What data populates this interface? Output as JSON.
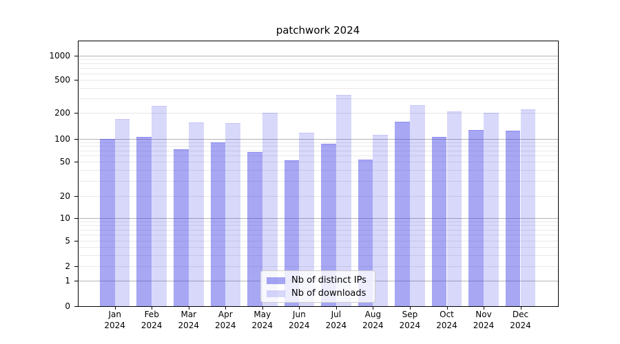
{
  "title": "patchwork 2024",
  "chart_data": {
    "type": "bar",
    "title": "patchwork 2024",
    "xlabel": "",
    "ylabel": "",
    "y_scale": "symlog-like (linear 0-1, log above)",
    "ylim": [
      0,
      1500
    ],
    "grid": "both major and minor, horizontal only",
    "legend_position": "bottom center inside plot",
    "year": "2024",
    "categories": [
      "Jan",
      "Feb",
      "Mar",
      "Apr",
      "May",
      "Jun",
      "Jul",
      "Aug",
      "Sep",
      "Oct",
      "Nov",
      "Dec"
    ],
    "yticks": [
      0,
      1,
      2,
      5,
      10,
      20,
      50,
      100,
      200,
      500,
      1000
    ],
    "series": [
      {
        "name": "Nb of distinct IPs",
        "color": "rgba(60,60,230,0.45)",
        "edge_top_color": "rgba(60,60,230,0.25)",
        "values": [
          97,
          103,
          71,
          87,
          66,
          51,
          85,
          52,
          156,
          103,
          125,
          123
        ]
      },
      {
        "name": "Nb of downloads",
        "color": "rgba(60,60,230,0.2)",
        "edge_top_color": "rgba(60,60,230,0.12)",
        "values": [
          167,
          238,
          153,
          151,
          197,
          116,
          325,
          110,
          245,
          207,
          197,
          219
        ]
      }
    ],
    "colors": {
      "background": "#ffffff",
      "axis_spine": "#000000",
      "major_grid": "#b2b2b2",
      "minor_grid": "#e8e8e8",
      "legend_border": "#cccccc"
    }
  }
}
